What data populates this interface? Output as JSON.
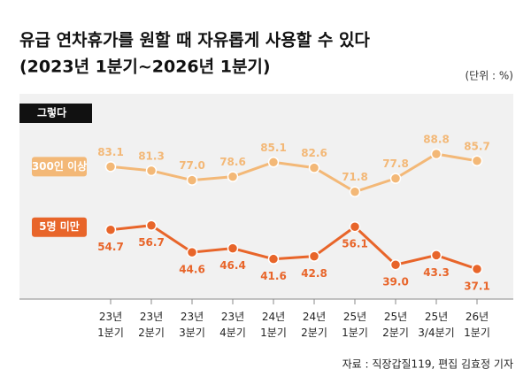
{
  "chart_data": {
    "type": "line",
    "title": "유급 연차휴가를 원할 때 자유롭게 사용할 수 있다",
    "subtitle": "(2023년 1분기~2026년 1분기)",
    "unit": "(단위 : %)",
    "badge": "그렇다",
    "source": "자료 : 직장갑질119, 편집 김효정 기자",
    "categories": [
      "23년\n1분기",
      "23년\n2분기",
      "23년\n3분기",
      "23년\n4분기",
      "24년\n1분기",
      "24년\n2분기",
      "25년\n1분기",
      "25년\n2분기",
      "25년\n3/4분기",
      "26년\n1분기"
    ],
    "series": [
      {
        "name": "300인 이상",
        "color": "#f3b877",
        "values": [
          83.1,
          81.3,
          77.0,
          78.6,
          85.1,
          82.6,
          71.8,
          77.8,
          88.8,
          85.7
        ],
        "value_labels": [
          "83.1",
          "81.3",
          "77.0",
          "78.6",
          "85.1",
          "82.6",
          "71.8",
          "77.8",
          "88.8",
          "85.7"
        ]
      },
      {
        "name": "5명 미만",
        "color": "#e8652a",
        "values": [
          54.7,
          56.7,
          44.6,
          46.4,
          41.6,
          42.8,
          56.1,
          39.0,
          43.3,
          37.1
        ],
        "value_labels": [
          "54.7",
          "56.7",
          "44.6",
          "46.4",
          "41.6",
          "42.8",
          "56.1",
          "39.0",
          "43.3",
          "37.1"
        ]
      }
    ]
  }
}
